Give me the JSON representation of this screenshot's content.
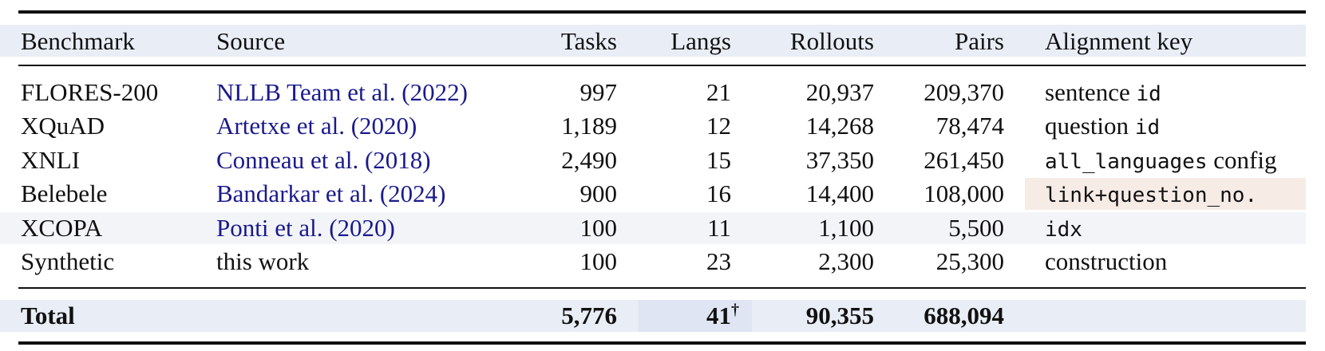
{
  "table": {
    "header": [
      "Benchmark",
      "Source",
      "Tasks",
      "Langs",
      "Rollouts",
      "Pairs",
      "Alignment key"
    ],
    "rows": [
      {
        "benchmark": "FLORES-200",
        "source": "NLLB Team et al. (2022)",
        "tasks": "997",
        "langs": "21",
        "rollouts": "20,937",
        "pairs": "209,370",
        "alignment": [
          {
            "text": "sentence",
            "mono": false
          },
          {
            "text": "id",
            "mono": true
          }
        ]
      },
      {
        "benchmark": "XQuAD",
        "source": "Artetxe et al. (2020)",
        "tasks": "1,189",
        "langs": "12",
        "rollouts": "14,268",
        "pairs": "78,474",
        "alignment": [
          {
            "text": "question",
            "mono": false
          },
          {
            "text": "id",
            "mono": true
          }
        ]
      },
      {
        "benchmark": "XNLI",
        "source": "Conneau et al. (2018)",
        "tasks": "2,490",
        "langs": "15",
        "rollouts": "37,350",
        "pairs": "261,450",
        "alignment": [
          {
            "text": "all_languages",
            "mono": true
          },
          {
            "text": "config",
            "mono": false
          }
        ]
      },
      {
        "benchmark": "Belebele",
        "source": "Bandarkar et al. (2024)",
        "tasks": "900",
        "langs": "16",
        "rollouts": "14,400",
        "pairs": "108,000",
        "alignment": [
          {
            "text": "link+question_no.",
            "mono": true
          }
        ],
        "highlight": true
      },
      {
        "benchmark": "XCOPA",
        "source": "Ponti et al. (2020)",
        "tasks": "100",
        "langs": "11",
        "rollouts": "1,100",
        "pairs": "5,500",
        "alignment": [
          {
            "text": "idx",
            "mono": true
          }
        ]
      },
      {
        "benchmark": "Synthetic",
        "source": "this work",
        "tasks": "100",
        "langs": "23",
        "rollouts": "2,300",
        "pairs": "25,300",
        "alignment": [
          {
            "text": "construction",
            "mono": false
          }
        ]
      }
    ],
    "total": {
      "label": "Total",
      "tasks": "5,776",
      "langs": "41",
      "langs_note": "†",
      "rollouts": "90,355",
      "pairs": "688,094"
    }
  }
}
